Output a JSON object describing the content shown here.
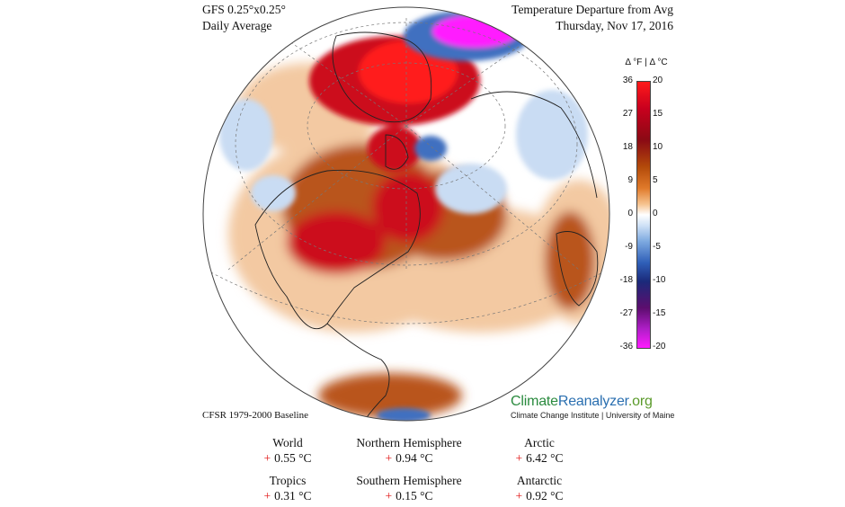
{
  "header": {
    "left_line1": "GFS 0.25°x0.25°",
    "left_line2": "Daily Average",
    "right_line1": "Temperature Departure from Avg",
    "right_line2": "Thursday, Nov 17, 2016"
  },
  "map": {
    "projection": "orthographic",
    "centered_on": "Northern Hemisphere",
    "colors": {
      "positive_strong": "#cc0b1e",
      "positive_extreme": "#ff1a1a",
      "positive_mid": "#b9541c",
      "positive_light": "#f3c9a2",
      "neutral": "#ffffff",
      "negative_light": "#c9dcf3",
      "negative_mid": "#3f6fc0",
      "negative_extreme": "#ff1aff"
    }
  },
  "legend": {
    "title": "Δ °F  |  Δ °C",
    "ticks_f": [
      "36",
      "27",
      "18",
      "9",
      "0",
      "-9",
      "-18",
      "-27",
      "-36"
    ],
    "ticks_c": [
      "20",
      "15",
      "10",
      "5",
      "0",
      "-5",
      "-10",
      "-15",
      "-20"
    ]
  },
  "footer": {
    "baseline": "CFSR 1979-2000 Baseline",
    "brand_part1": "Climate",
    "brand_part2": "Reanalyzer",
    "brand_part3": ".org",
    "brand_sub": "Climate Change Institute | University of Maine"
  },
  "stats": [
    {
      "label": "World",
      "sign": "+",
      "value": "0.55 °C"
    },
    {
      "label": "Northern Hemisphere",
      "sign": "+",
      "value": "0.94 °C"
    },
    {
      "label": "Arctic",
      "sign": "+",
      "value": "6.42 °C"
    },
    {
      "label": "Tropics",
      "sign": "+",
      "value": "0.31 °C"
    },
    {
      "label": "Southern Hemisphere",
      "sign": "+",
      "value": "0.15 °C"
    },
    {
      "label": "Antarctic",
      "sign": "+",
      "value": "0.92 °C"
    }
  ]
}
